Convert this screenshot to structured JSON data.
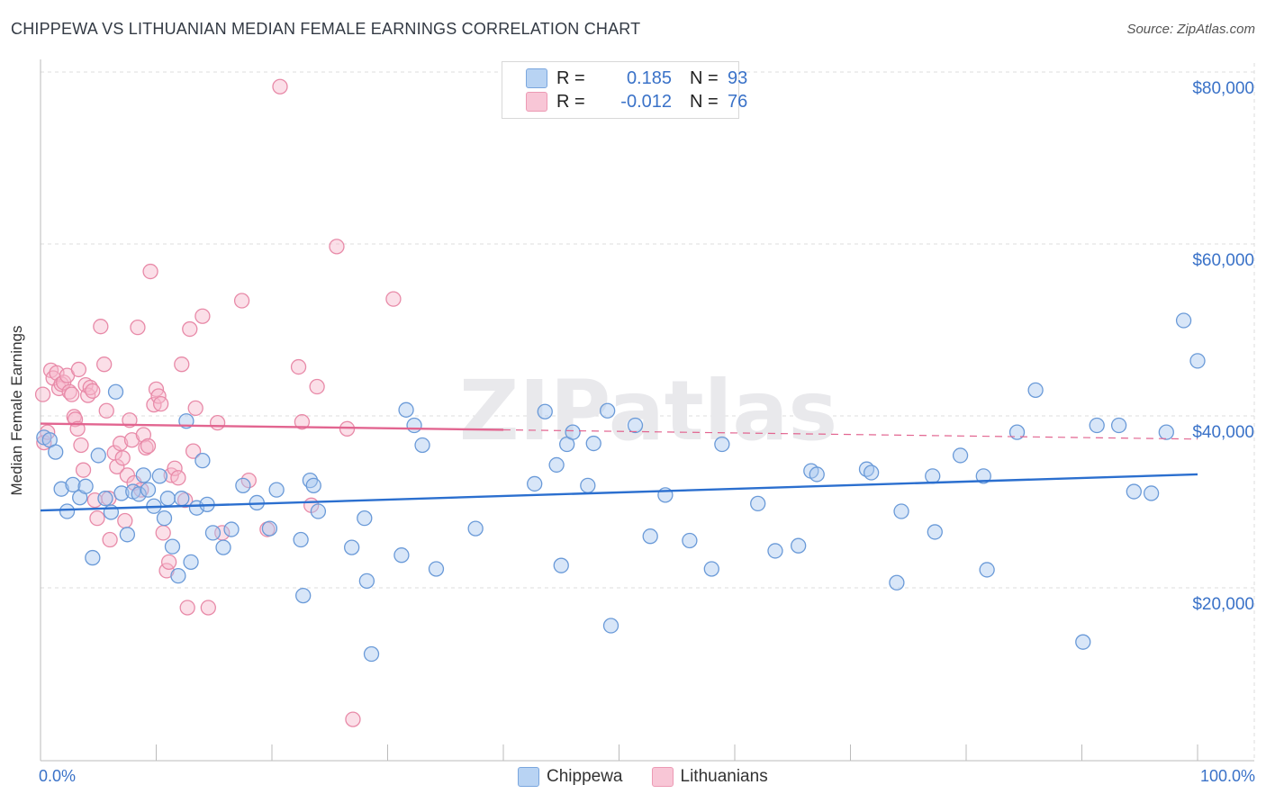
{
  "title": "CHIPPEWA VS LITHUANIAN MEDIAN FEMALE EARNINGS CORRELATION CHART",
  "source": "Source: ZipAtlas.com",
  "watermark": "ZIPatlas",
  "colors": {
    "chippewa_fill": "#a9c8f0",
    "chippewa_stroke": "#6a9ad8",
    "chippewa_line": "#2b6fcf",
    "lith_fill": "#f6b8cc",
    "lith_stroke": "#e88aa8",
    "lith_line": "#e26590",
    "axis_label": "#3a72c8",
    "grid": "#dcdcdc"
  },
  "legend_top": {
    "rows": [
      {
        "r_label": "R =",
        "r_value": "0.185",
        "n_label": "N =",
        "n_value": "93"
      },
      {
        "r_label": "R =",
        "r_value": "-0.012",
        "n_label": "N =",
        "n_value": "76"
      }
    ]
  },
  "legend_bottom": [
    "Chippewa",
    "Lithuanians"
  ],
  "chart_data": {
    "type": "scatter",
    "title": "CHIPPEWA VS LITHUANIAN MEDIAN FEMALE EARNINGS CORRELATION CHART",
    "xlabel": "",
    "ylabel": "Median Female Earnings",
    "xlim": [
      0,
      100
    ],
    "ylim": [
      3000,
      82000
    ],
    "x_tick_labels": [
      "0.0%",
      "100.0%"
    ],
    "y_ticks": [
      20000,
      40000,
      60000,
      80000
    ],
    "y_tick_labels": [
      "$20,000",
      "$40,000",
      "$60,000",
      "$80,000"
    ],
    "series": [
      {
        "name": "Chippewa",
        "R": 0.185,
        "N": 93,
        "trend": {
          "x": [
            0,
            100
          ],
          "y": [
            29000,
            33200
          ],
          "dashed_after": null
        },
        "points": [
          [
            0.3,
            37500
          ],
          [
            0.8,
            37200
          ],
          [
            1.3,
            35800
          ],
          [
            1.8,
            31500
          ],
          [
            2.3,
            28900
          ],
          [
            2.8,
            32000
          ],
          [
            3.4,
            30500
          ],
          [
            3.9,
            31800
          ],
          [
            4.5,
            23500
          ],
          [
            5.0,
            35400
          ],
          [
            5.6,
            30400
          ],
          [
            6.1,
            28800
          ],
          [
            6.5,
            42800
          ],
          [
            7.0,
            31000
          ],
          [
            7.5,
            26200
          ],
          [
            8.0,
            31200
          ],
          [
            8.5,
            30900
          ],
          [
            8.9,
            33100
          ],
          [
            9.3,
            31400
          ],
          [
            9.8,
            29500
          ],
          [
            10.3,
            33000
          ],
          [
            10.7,
            28100
          ],
          [
            11.0,
            30400
          ],
          [
            11.4,
            24800
          ],
          [
            11.9,
            21400
          ],
          [
            12.2,
            30400
          ],
          [
            12.6,
            39400
          ],
          [
            13.0,
            23000
          ],
          [
            13.5,
            29300
          ],
          [
            14.0,
            34800
          ],
          [
            14.4,
            29700
          ],
          [
            14.9,
            26400
          ],
          [
            15.8,
            24700
          ],
          [
            16.5,
            26800
          ],
          [
            17.5,
            31900
          ],
          [
            18.7,
            29900
          ],
          [
            19.8,
            26900
          ],
          [
            20.4,
            31400
          ],
          [
            22.5,
            25600
          ],
          [
            22.7,
            19100
          ],
          [
            23.3,
            32500
          ],
          [
            23.6,
            31900
          ],
          [
            24.0,
            28900
          ],
          [
            26.9,
            24700
          ],
          [
            28.0,
            28100
          ],
          [
            28.2,
            20800
          ],
          [
            28.6,
            12300
          ],
          [
            31.2,
            23800
          ],
          [
            31.6,
            40700
          ],
          [
            32.3,
            38900
          ],
          [
            33.0,
            36600
          ],
          [
            34.2,
            22200
          ],
          [
            37.6,
            26900
          ],
          [
            42.7,
            32100
          ],
          [
            43.6,
            40500
          ],
          [
            44.6,
            34300
          ],
          [
            45.0,
            22600
          ],
          [
            45.5,
            36700
          ],
          [
            46.0,
            38100
          ],
          [
            47.3,
            31900
          ],
          [
            47.8,
            36800
          ],
          [
            49.0,
            40600
          ],
          [
            49.3,
            15600
          ],
          [
            51.4,
            38900
          ],
          [
            52.7,
            26000
          ],
          [
            54.0,
            30800
          ],
          [
            56.1,
            25500
          ],
          [
            58.0,
            22200
          ],
          [
            58.9,
            36700
          ],
          [
            62.0,
            29800
          ],
          [
            63.5,
            24300
          ],
          [
            65.5,
            24900
          ],
          [
            66.6,
            33600
          ],
          [
            67.1,
            33200
          ],
          [
            71.4,
            33800
          ],
          [
            71.8,
            33400
          ],
          [
            74.0,
            20600
          ],
          [
            74.4,
            28900
          ],
          [
            77.3,
            26500
          ],
          [
            77.1,
            33000
          ],
          [
            79.5,
            35400
          ],
          [
            81.8,
            22100
          ],
          [
            81.5,
            33000
          ],
          [
            84.4,
            38100
          ],
          [
            86.0,
            43000
          ],
          [
            90.1,
            13700
          ],
          [
            91.3,
            38900
          ],
          [
            93.2,
            38900
          ],
          [
            94.5,
            31200
          ],
          [
            96.0,
            31000
          ],
          [
            97.3,
            38100
          ],
          [
            98.8,
            51100
          ],
          [
            100.0,
            46400
          ]
        ]
      },
      {
        "name": "Lithuanians",
        "R": -0.012,
        "N": 76,
        "trend": {
          "x": [
            0,
            100
          ],
          "y": [
            39100,
            37300
          ],
          "dashed_after": 40
        },
        "points": [
          [
            0.2,
            42500
          ],
          [
            0.3,
            36900
          ],
          [
            0.6,
            38100
          ],
          [
            0.9,
            45300
          ],
          [
            1.1,
            44400
          ],
          [
            1.4,
            45000
          ],
          [
            1.6,
            43200
          ],
          [
            1.8,
            43700
          ],
          [
            2.0,
            43900
          ],
          [
            2.3,
            44700
          ],
          [
            2.5,
            42800
          ],
          [
            2.7,
            42500
          ],
          [
            2.9,
            39900
          ],
          [
            3.0,
            39600
          ],
          [
            3.2,
            38500
          ],
          [
            3.3,
            45400
          ],
          [
            3.5,
            36600
          ],
          [
            3.7,
            33700
          ],
          [
            3.9,
            43600
          ],
          [
            4.1,
            42400
          ],
          [
            4.3,
            43300
          ],
          [
            4.5,
            42900
          ],
          [
            4.7,
            30200
          ],
          [
            4.9,
            28100
          ],
          [
            5.2,
            50400
          ],
          [
            5.5,
            46000
          ],
          [
            5.7,
            40600
          ],
          [
            5.9,
            30400
          ],
          [
            6.0,
            25600
          ],
          [
            6.4,
            35700
          ],
          [
            6.6,
            34100
          ],
          [
            6.9,
            36800
          ],
          [
            7.1,
            35100
          ],
          [
            7.3,
            27800
          ],
          [
            7.5,
            33100
          ],
          [
            7.7,
            39500
          ],
          [
            7.9,
            37200
          ],
          [
            8.1,
            32200
          ],
          [
            8.4,
            50300
          ],
          [
            8.7,
            31400
          ],
          [
            8.9,
            37800
          ],
          [
            9.1,
            36300
          ],
          [
            9.3,
            36500
          ],
          [
            9.5,
            56800
          ],
          [
            9.8,
            41300
          ],
          [
            10.0,
            43100
          ],
          [
            10.2,
            42300
          ],
          [
            10.4,
            41400
          ],
          [
            10.6,
            26400
          ],
          [
            10.9,
            22000
          ],
          [
            11.1,
            23000
          ],
          [
            11.3,
            33100
          ],
          [
            11.6,
            33900
          ],
          [
            11.9,
            32800
          ],
          [
            12.2,
            46000
          ],
          [
            12.5,
            30200
          ],
          [
            12.7,
            17700
          ],
          [
            12.9,
            50100
          ],
          [
            13.2,
            35900
          ],
          [
            14.0,
            51600
          ],
          [
            14.5,
            17700
          ],
          [
            15.3,
            39200
          ],
          [
            15.7,
            26400
          ],
          [
            17.4,
            53400
          ],
          [
            19.6,
            26800
          ],
          [
            20.7,
            78300
          ],
          [
            22.3,
            45700
          ],
          [
            22.6,
            39300
          ],
          [
            23.9,
            43400
          ],
          [
            25.6,
            59700
          ],
          [
            26.5,
            38500
          ],
          [
            27.0,
            4700
          ],
          [
            30.5,
            53600
          ],
          [
            23.4,
            29600
          ],
          [
            13.4,
            40900
          ],
          [
            18.0,
            32500
          ]
        ]
      }
    ]
  }
}
